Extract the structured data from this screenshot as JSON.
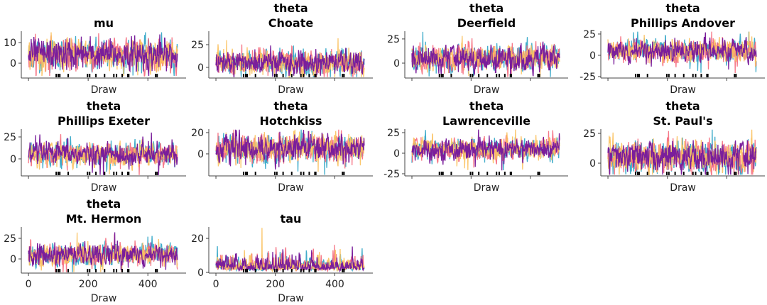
{
  "chart_data": [
    {
      "type": "line",
      "title_lines": [
        "mu"
      ],
      "xlabel": "Draw",
      "ylim": [
        -7.2,
        15.5
      ],
      "yticks": [
        0,
        10
      ],
      "xlim": [
        -24,
        528
      ],
      "xticks": [
        0,
        200,
        400
      ],
      "show_xticklabels": false
    },
    {
      "type": "line",
      "title_lines": [
        "theta",
        "Choate"
      ],
      "xlabel": "Draw",
      "ylim": [
        -11.7,
        39.8
      ],
      "yticks": [
        0,
        25
      ],
      "xlim": [
        -24,
        528
      ],
      "xticks": [
        0,
        200,
        400
      ],
      "show_xticklabels": false
    },
    {
      "type": "line",
      "title_lines": [
        "theta",
        "Deerfield"
      ],
      "xlabel": "Draw",
      "ylim": [
        -15.4,
        33
      ],
      "yticks": [
        0,
        25
      ],
      "xlim": [
        -24,
        528
      ],
      "xticks": [
        0,
        200,
        400
      ],
      "show_xticklabels": false
    },
    {
      "type": "line",
      "title_lines": [
        "theta",
        "Phillips Andover"
      ],
      "xlabel": "Draw",
      "ylim": [
        -26.7,
        28.3
      ],
      "yticks": [
        -25,
        0,
        25
      ],
      "xlim": [
        -24,
        528
      ],
      "xticks": [
        0,
        200,
        400
      ],
      "show_xticklabels": false
    },
    {
      "type": "line",
      "title_lines": [
        "theta",
        "Phillips Exeter"
      ],
      "xlabel": "Draw",
      "ylim": [
        -19.4,
        33.9
      ],
      "yticks": [
        0,
        25
      ],
      "xlim": [
        -24,
        528
      ],
      "xticks": [
        0,
        200,
        400
      ],
      "show_xticklabels": false
    },
    {
      "type": "line",
      "title_lines": [
        "theta",
        "Hotchkiss"
      ],
      "xlabel": "Draw",
      "ylim": [
        -20.7,
        23.3
      ],
      "yticks": [
        0,
        20
      ],
      "xlim": [
        -24,
        528
      ],
      "xticks": [
        0,
        200,
        400
      ],
      "show_xticklabels": false
    },
    {
      "type": "line",
      "title_lines": [
        "theta",
        "Lawrenceville"
      ],
      "xlabel": "Draw",
      "ylim": [
        -27.6,
        29.3
      ],
      "yticks": [
        -25,
        0,
        25
      ],
      "xlim": [
        -24,
        528
      ],
      "xticks": [
        0,
        200,
        400
      ],
      "show_xticklabels": false
    },
    {
      "type": "line",
      "title_lines": [
        "theta",
        "St. Paul's"
      ],
      "xlabel": "Draw",
      "ylim": [
        -10.7,
        28.6
      ],
      "yticks": [
        0,
        25
      ],
      "xlim": [
        -24,
        528
      ],
      "xticks": [
        0,
        200,
        400
      ],
      "show_xticklabels": false
    },
    {
      "type": "line",
      "title_lines": [
        "theta",
        "Mt. Hermon"
      ],
      "xlabel": "Draw",
      "ylim": [
        -17.2,
        38.8
      ],
      "yticks": [
        0,
        25
      ],
      "xlim": [
        -24,
        528
      ],
      "xticks": [
        0,
        200,
        400
      ],
      "show_xticklabels": true
    },
    {
      "type": "line",
      "title_lines": [
        "tau"
      ],
      "xlabel": "Draw",
      "ylim": [
        -0.4,
        26.7
      ],
      "yticks": [
        0,
        20
      ],
      "xlim": [
        -24,
        528
      ],
      "xticks": [
        0,
        200,
        400
      ],
      "show_xticklabels": true
    }
  ],
  "draws": 500,
  "chains": 4,
  "chain_colors": [
    "#2ba3c4",
    "#f5697b",
    "#fbc15e",
    "#7a1e9b"
  ],
  "divergent_draws": [
    93,
    100,
    105,
    133,
    198,
    205,
    226,
    255,
    286,
    295,
    314,
    333,
    336,
    426,
    431
  ],
  "divergence_color": "#000000",
  "grid": false,
  "legend": "none"
}
